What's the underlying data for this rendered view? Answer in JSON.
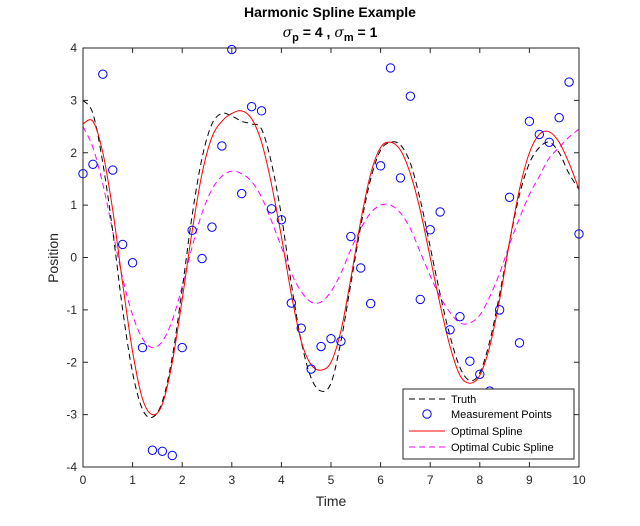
{
  "chart_data": {
    "type": "line",
    "title": "Harmonic Spline Example",
    "subtitle": {
      "sigma_p_symbol": "σ",
      "sigma_p_sub": "p",
      "sigma_p_value": " = 4  , ",
      "sigma_m_symbol": "σ",
      "sigma_m_sub": "m",
      "sigma_m_value": " = 1"
    },
    "xlabel": "Time",
    "ylabel": "Position",
    "xlim": [
      0,
      10
    ],
    "ylim": [
      -4,
      4
    ],
    "xticks": [
      "0",
      "1",
      "2",
      "3",
      "4",
      "5",
      "6",
      "7",
      "8",
      "9",
      "10"
    ],
    "yticks": [
      "-4",
      "-3",
      "-2",
      "-1",
      "0",
      "1",
      "2",
      "3",
      "4"
    ],
    "legend": {
      "location": "bottom-right",
      "entries": [
        {
          "label": "Truth",
          "style": "dashed",
          "color": "#000000",
          "marker": "line"
        },
        {
          "label": "Measurement Points",
          "style": "none",
          "color": "#0000ff",
          "marker": "circle"
        },
        {
          "label": "Optimal Spline",
          "style": "solid",
          "color": "#ff0000",
          "marker": "line"
        },
        {
          "label": "Optimal Cubic Spline",
          "style": "dashed",
          "color": "#ff00ff",
          "marker": "line"
        }
      ]
    },
    "series": [
      {
        "name": "Truth",
        "color": "#000000",
        "style": "dashed",
        "x": [
          0,
          0.2,
          0.4,
          0.6,
          0.8,
          1.0,
          1.2,
          1.4,
          1.6,
          1.8,
          2.0,
          2.2,
          2.4,
          2.6,
          2.8,
          3.0,
          3.2,
          3.4,
          3.6,
          3.8,
          4.0,
          4.2,
          4.4,
          4.6,
          4.8,
          5.0,
          5.2,
          5.4,
          5.6,
          5.8,
          6.0,
          6.2,
          6.4,
          6.6,
          6.8,
          7.0,
          7.2,
          7.4,
          7.6,
          7.8,
          8.0,
          8.2,
          8.4,
          8.6,
          8.8,
          9.0,
          9.2,
          9.4,
          9.6,
          9.8,
          10.0
        ],
        "values": [
          3.0,
          2.75,
          1.8,
          0.5,
          -1.0,
          -2.2,
          -2.9,
          -3.05,
          -2.75,
          -1.9,
          -0.6,
          0.8,
          1.9,
          2.55,
          2.75,
          2.7,
          2.6,
          2.55,
          2.45,
          1.8,
          0.8,
          -0.5,
          -1.6,
          -2.3,
          -2.55,
          -2.4,
          -1.6,
          -0.5,
          0.6,
          1.5,
          2.05,
          2.2,
          2.15,
          1.8,
          1.1,
          0.2,
          -0.7,
          -1.5,
          -2.1,
          -2.35,
          -2.2,
          -1.6,
          -0.7,
          0.3,
          1.2,
          1.8,
          2.1,
          2.2,
          2.0,
          1.6,
          1.3
        ]
      },
      {
        "name": "Optimal Spline",
        "color": "#ff0000",
        "style": "solid",
        "x": [
          0,
          0.2,
          0.4,
          0.6,
          0.8,
          1.0,
          1.2,
          1.4,
          1.6,
          1.8,
          2.0,
          2.2,
          2.4,
          2.6,
          2.8,
          3.0,
          3.2,
          3.4,
          3.6,
          3.8,
          4.0,
          4.2,
          4.4,
          4.6,
          4.8,
          5.0,
          5.2,
          5.4,
          5.6,
          5.8,
          6.0,
          6.2,
          6.4,
          6.6,
          6.8,
          7.0,
          7.2,
          7.4,
          7.6,
          7.8,
          8.0,
          8.2,
          8.4,
          8.6,
          8.8,
          9.0,
          9.2,
          9.4,
          9.6,
          9.8,
          10.0
        ],
        "values": [
          2.55,
          2.6,
          2.0,
          0.9,
          -0.5,
          -1.8,
          -2.7,
          -3.0,
          -2.8,
          -2.0,
          -0.8,
          0.5,
          1.6,
          2.3,
          2.6,
          2.75,
          2.8,
          2.65,
          2.2,
          1.4,
          0.4,
          -0.7,
          -1.6,
          -2.05,
          -2.15,
          -2.0,
          -1.4,
          -0.4,
          0.7,
          1.6,
          2.1,
          2.2,
          2.05,
          1.6,
          0.9,
          0.0,
          -0.9,
          -1.7,
          -2.25,
          -2.4,
          -2.25,
          -1.7,
          -0.8,
          0.3,
          1.3,
          2.0,
          2.35,
          2.4,
          2.2,
          1.8,
          1.3
        ]
      },
      {
        "name": "Optimal Cubic Spline",
        "color": "#ff00ff",
        "style": "dashed",
        "x": [
          0,
          0.2,
          0.4,
          0.6,
          0.8,
          1.0,
          1.2,
          1.4,
          1.6,
          1.8,
          2.0,
          2.2,
          2.4,
          2.6,
          2.8,
          3.0,
          3.2,
          3.4,
          3.6,
          3.8,
          4.0,
          4.2,
          4.4,
          4.6,
          4.8,
          5.0,
          5.2,
          5.4,
          5.6,
          5.8,
          6.0,
          6.2,
          6.4,
          6.6,
          6.8,
          7.0,
          7.2,
          7.4,
          7.6,
          7.8,
          8.0,
          8.2,
          8.4,
          8.6,
          8.8,
          9.0,
          9.2,
          9.4,
          9.6,
          9.8,
          10.0
        ],
        "values": [
          2.5,
          2.1,
          1.4,
          0.5,
          -0.4,
          -1.1,
          -1.55,
          -1.72,
          -1.6,
          -1.2,
          -0.55,
          0.2,
          0.85,
          1.3,
          1.55,
          1.65,
          1.6,
          1.45,
          1.15,
          0.7,
          0.2,
          -0.3,
          -0.65,
          -0.85,
          -0.85,
          -0.65,
          -0.3,
          0.15,
          0.55,
          0.85,
          1.0,
          1.0,
          0.85,
          0.55,
          0.1,
          -0.35,
          -0.75,
          -1.05,
          -1.25,
          -1.25,
          -1.1,
          -0.75,
          -0.3,
          0.25,
          0.75,
          1.2,
          1.55,
          1.9,
          2.1,
          2.3,
          2.45
        ]
      }
    ],
    "scatter": {
      "name": "Measurement Points",
      "color": "#0000ff",
      "x": [
        0.0,
        0.2,
        0.4,
        0.6,
        0.8,
        1.0,
        1.2,
        1.4,
        1.6,
        1.8,
        2.0,
        2.2,
        2.4,
        2.6,
        2.8,
        3.0,
        3.2,
        3.4,
        3.6,
        3.8,
        4.0,
        4.2,
        4.4,
        4.6,
        4.8,
        5.0,
        5.2,
        5.4,
        5.6,
        5.8,
        6.0,
        6.2,
        6.4,
        6.6,
        6.8,
        7.0,
        7.2,
        7.4,
        7.6,
        7.8,
        8.0,
        8.2,
        8.4,
        8.6,
        8.8,
        9.0,
        9.2,
        9.4,
        9.6,
        9.8,
        10.0
      ],
      "values": [
        1.6,
        1.78,
        3.5,
        1.67,
        0.25,
        -0.1,
        -1.72,
        -3.68,
        -3.7,
        -3.78,
        -1.72,
        0.52,
        -0.02,
        0.58,
        2.13,
        3.97,
        1.22,
        2.88,
        2.8,
        0.93,
        0.72,
        -0.87,
        -1.35,
        -2.13,
        -1.7,
        -1.55,
        -1.6,
        0.4,
        -0.2,
        -0.88,
        1.75,
        3.62,
        1.52,
        3.08,
        -0.8,
        0.53,
        0.87,
        -1.38,
        -1.13,
        -1.98,
        -2.23,
        -2.55,
        -1.0,
        1.15,
        -1.63,
        2.6,
        2.35,
        2.2,
        2.67,
        3.35,
        0.45
      ]
    }
  }
}
